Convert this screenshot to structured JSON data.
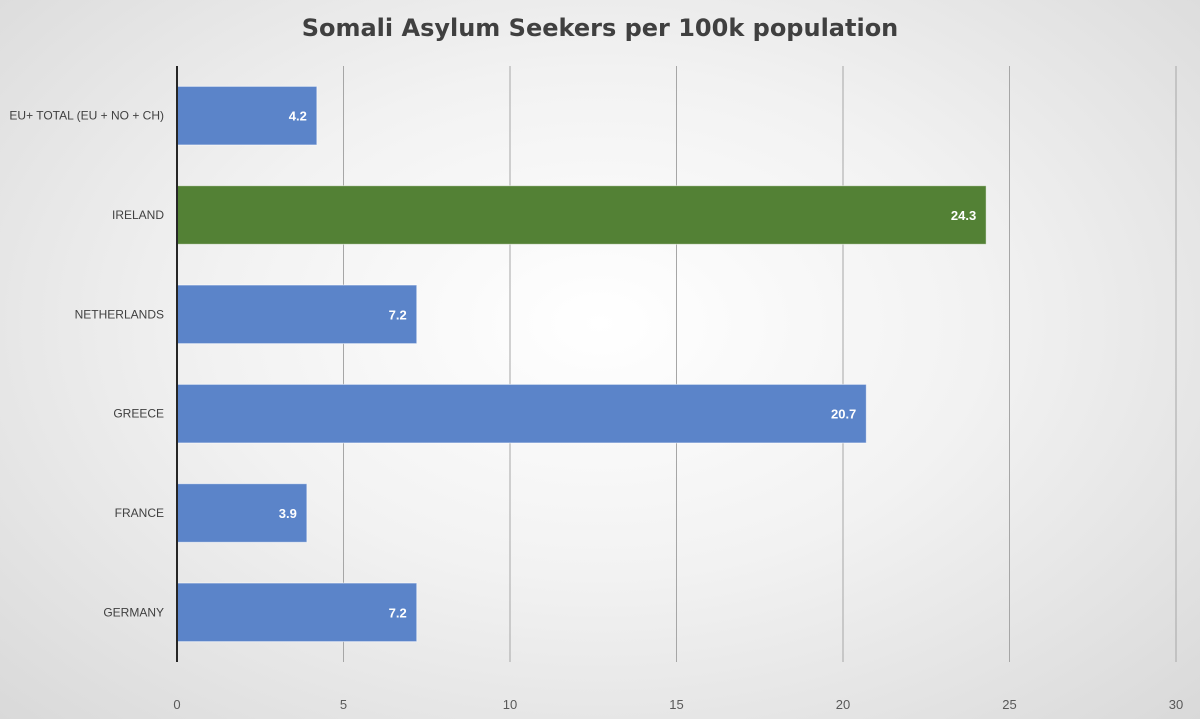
{
  "chart_data": {
    "type": "bar",
    "orientation": "horizontal",
    "title": "Somali Asylum Seekers per 100k population",
    "xlabel": "",
    "ylabel": "",
    "categories": [
      "EU+ TOTAL (EU + NO + CH)",
      "IRELAND",
      "NETHERLANDS",
      "GREECE",
      "FRANCE",
      "GERMANY"
    ],
    "values": [
      4.2,
      24.3,
      7.2,
      20.7,
      3.9,
      7.2
    ],
    "data_labels": [
      "4.2",
      "24.3",
      "7.2",
      "20.7",
      "3.9",
      "7.2"
    ],
    "bar_colors": [
      "#5b84c9",
      "#538135",
      "#5b84c9",
      "#5b84c9",
      "#5b84c9",
      "#5b84c9"
    ],
    "xlim": [
      0,
      30
    ],
    "xticks": [
      0,
      5,
      10,
      15,
      20,
      25,
      30
    ],
    "xtick_labels": [
      "0",
      "5",
      "10",
      "15",
      "20",
      "25",
      "30"
    ],
    "grid": "vertical",
    "legend": "none"
  }
}
